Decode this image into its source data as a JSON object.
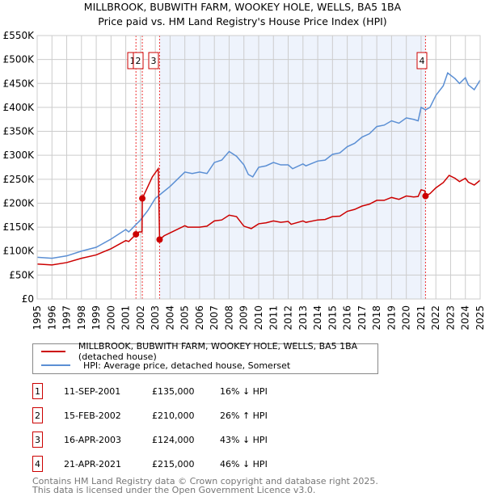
{
  "title": "MILLBROOK, BUBWITH FARM, WOOKEY HOLE, WELLS, BA5 1BA",
  "subtitle": "Price paid vs. HM Land Registry's House Price Index (HPI)",
  "colors": {
    "property": "#cc0000",
    "hpi": "#5b8fd4",
    "shade": "#eef3fc"
  },
  "chart_data": {
    "type": "line",
    "ylim": [
      0,
      550000
    ],
    "xlim": [
      1995,
      2025
    ],
    "yticks": [
      "£0",
      "£50K",
      "£100K",
      "£150K",
      "£200K",
      "£250K",
      "£300K",
      "£350K",
      "£400K",
      "£450K",
      "£500K",
      "£550K"
    ],
    "xticks": [
      "1995",
      "1996",
      "1997",
      "1998",
      "1999",
      "2000",
      "2001",
      "2002",
      "2003",
      "2004",
      "2005",
      "2006",
      "2007",
      "2008",
      "2009",
      "2010",
      "2011",
      "2012",
      "2013",
      "2014",
      "2015",
      "2016",
      "2017",
      "2018",
      "2019",
      "2020",
      "2021",
      "2022",
      "2023",
      "2024",
      "2025"
    ],
    "shaded_range": [
      2003.29,
      2021.3
    ],
    "series": [
      {
        "name": "MILLBROOK, BUBWITH FARM, WOOKEY HOLE, WELLS, BA5 1BA (detached house)",
        "color": "#cc0000",
        "x": [
          1995,
          1996,
          1997,
          1998,
          1999,
          2000,
          2001,
          2001.2,
          2001.69,
          2001.9,
          2002.1,
          2002.12,
          2002.5,
          2002.8,
          2003.2,
          2003.29,
          2003.6,
          2004,
          2005,
          2005.2,
          2006,
          2006.5,
          2007,
          2007.5,
          2008,
          2008.5,
          2009,
          2009.5,
          2010,
          2010.5,
          2011,
          2011.5,
          2012,
          2012.2,
          2013,
          2013.2,
          2014,
          2014.5,
          2015,
          2015.5,
          2016,
          2016.5,
          2017,
          2017.5,
          2018,
          2018.5,
          2019,
          2019.5,
          2020,
          2020.5,
          2020.8,
          2021,
          2021.25,
          2021.3,
          2021.6,
          2022,
          2022.5,
          2022.9,
          2023.3,
          2023.6,
          2024,
          2024.2,
          2024.6,
          2025
        ],
        "y": [
          73000,
          71000,
          76000,
          85000,
          92000,
          105000,
          122000,
          120000,
          135000,
          140000,
          140000,
          210000,
          235000,
          255000,
          272000,
          124000,
          132000,
          138000,
          153000,
          150000,
          150000,
          152000,
          163000,
          165000,
          175000,
          172000,
          152000,
          147000,
          157000,
          159000,
          163000,
          160000,
          162000,
          156000,
          163000,
          160000,
          165000,
          166000,
          172000,
          173000,
          183000,
          187000,
          194000,
          198000,
          206000,
          206000,
          212000,
          208000,
          215000,
          213000,
          214000,
          228000,
          226000,
          215000,
          220000,
          232000,
          243000,
          258000,
          252000,
          245000,
          252000,
          244000,
          238000,
          248000
        ]
      },
      {
        "name": "HPI: Average price, detached house, Somerset",
        "color": "#5b8fd4",
        "x": [
          1995,
          1996,
          1997,
          1998,
          1999,
          2000,
          2001,
          2001.2,
          2002,
          2002.5,
          2003,
          2004,
          2005,
          2005.5,
          2006,
          2006.5,
          2007,
          2007.5,
          2008,
          2008.5,
          2009,
          2009.3,
          2009.6,
          2010,
          2010.5,
          2011,
          2011.5,
          2012,
          2012.3,
          2013,
          2013.2,
          2014,
          2014.5,
          2015,
          2015.5,
          2016,
          2016.5,
          2017,
          2017.5,
          2018,
          2018.5,
          2019,
          2019.5,
          2020,
          2020.5,
          2020.8,
          2021,
          2021.3,
          2021.6,
          2022,
          2022.5,
          2022.8,
          2023.3,
          2023.6,
          2024,
          2024.2,
          2024.6,
          2025
        ],
        "y": [
          87000,
          85000,
          90000,
          100000,
          108000,
          125000,
          145000,
          140000,
          165000,
          185000,
          210000,
          235000,
          265000,
          262000,
          265000,
          262000,
          285000,
          290000,
          308000,
          298000,
          280000,
          260000,
          255000,
          275000,
          278000,
          285000,
          280000,
          280000,
          272000,
          282000,
          278000,
          288000,
          290000,
          302000,
          305000,
          318000,
          325000,
          338000,
          345000,
          360000,
          363000,
          372000,
          367000,
          378000,
          375000,
          372000,
          400000,
          395000,
          400000,
          425000,
          445000,
          472000,
          460000,
          450000,
          462000,
          447000,
          437000,
          457000
        ]
      }
    ],
    "sales": [
      {
        "label": "1",
        "date": "11-SEP-2001",
        "x": 2001.69,
        "price": 135000,
        "price_text": "£135,000",
        "hpi_text": "16% ↓ HPI"
      },
      {
        "label": "2",
        "date": "15-FEB-2002",
        "x": 2002.12,
        "price": 210000,
        "price_text": "£210,000",
        "hpi_text": "26% ↑ HPI"
      },
      {
        "label": "3",
        "date": "16-APR-2003",
        "x": 2003.29,
        "price": 124000,
        "price_text": "£124,000",
        "hpi_text": "43% ↓ HPI"
      },
      {
        "label": "4",
        "date": "21-APR-2021",
        "x": 2021.3,
        "price": 215000,
        "price_text": "£215,000",
        "hpi_text": "46% ↓ HPI"
      }
    ]
  },
  "legend": {
    "property": "MILLBROOK, BUBWITH FARM, WOOKEY HOLE, WELLS, BA5 1BA (detached house)",
    "hpi": "HPI: Average price, detached house, Somerset"
  },
  "footer": [
    "Contains HM Land Registry data © Crown copyright and database right 2025.",
    "This data is licensed under the Open Government Licence v3.0."
  ]
}
